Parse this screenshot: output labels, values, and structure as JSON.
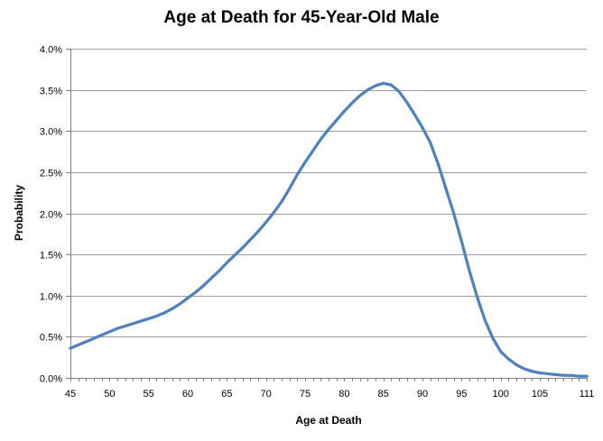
{
  "chart_data": {
    "type": "line",
    "title": "Age at Death for 45-Year-Old Male",
    "xlabel": "Age at Death",
    "ylabel": "Probability",
    "x_range": [
      45,
      111
    ],
    "y_range": [
      0,
      4
    ],
    "grid": "horizontal-major",
    "legend": "none",
    "y_tick_labels": [
      "0.0%",
      "0.5%",
      "1.0%",
      "1.5%",
      "2.0%",
      "2.5%",
      "3.0%",
      "3.5%",
      "4.0%"
    ],
    "x_tick_labels": [
      "45",
      "50",
      "55",
      "60",
      "65",
      "70",
      "75",
      "80",
      "85",
      "90",
      "95",
      "100",
      "105",
      "111"
    ],
    "x": [
      45,
      46,
      47,
      48,
      49,
      50,
      51,
      52,
      53,
      54,
      55,
      56,
      57,
      58,
      59,
      60,
      61,
      62,
      63,
      64,
      65,
      66,
      67,
      68,
      69,
      70,
      71,
      72,
      73,
      74,
      75,
      76,
      77,
      78,
      79,
      80,
      81,
      82,
      83,
      84,
      85,
      86,
      87,
      88,
      89,
      90,
      91,
      92,
      93,
      94,
      95,
      96,
      97,
      98,
      99,
      100,
      101,
      102,
      103,
      104,
      105,
      106,
      107,
      108,
      109,
      110,
      111
    ],
    "values_percent": [
      0.36,
      0.4,
      0.44,
      0.48,
      0.52,
      0.56,
      0.6,
      0.63,
      0.66,
      0.69,
      0.72,
      0.75,
      0.79,
      0.84,
      0.9,
      0.97,
      1.04,
      1.12,
      1.21,
      1.3,
      1.4,
      1.49,
      1.58,
      1.68,
      1.78,
      1.89,
      2.01,
      2.14,
      2.3,
      2.47,
      2.62,
      2.76,
      2.9,
      3.02,
      3.13,
      3.24,
      3.34,
      3.43,
      3.5,
      3.55,
      3.58,
      3.56,
      3.48,
      3.35,
      3.2,
      3.04,
      2.86,
      2.6,
      2.3,
      2.0,
      1.66,
      1.3,
      0.98,
      0.7,
      0.48,
      0.32,
      0.23,
      0.16,
      0.11,
      0.08,
      0.06,
      0.05,
      0.04,
      0.03,
      0.03,
      0.02,
      0.02
    ],
    "colors": {
      "line": "#4F81BD",
      "gridline": "#9C9C9C",
      "axis": "#808080",
      "text": "#000000",
      "background": "#FFFFFF"
    }
  }
}
